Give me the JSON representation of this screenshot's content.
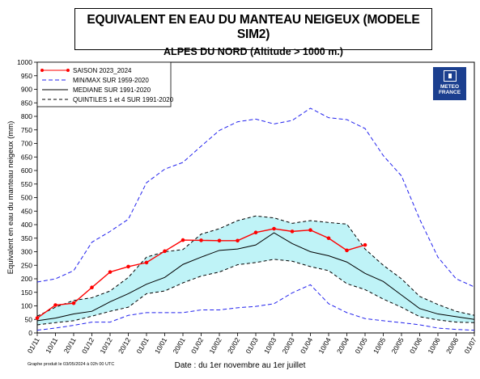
{
  "title": "EQUIVALENT EN EAU DU MANTEAU NEIGEUX (MODELE SIM2)",
  "subtitle": "ALPES DU NORD (Altitude > 1000 m.)",
  "logo_text": [
    "METEO",
    "FRANCE"
  ],
  "footnote": "Graphe produit le 03/05/2024 à 02h 00 UTC",
  "colors": {
    "season": "#ff0000",
    "minmax": "#2222ee",
    "median": "#000000",
    "quintiles": "#000000",
    "band": "#bff3f7",
    "logo": "#1b3f8f"
  },
  "chart_data": {
    "type": "line",
    "xlabel": "Date : du 1er novembre au 1er juillet",
    "ylabel": "Equivalent en eau du manteau neigeux (mm)",
    "ylim": [
      0,
      1000
    ],
    "yticks": [
      0,
      50,
      100,
      150,
      200,
      250,
      300,
      350,
      400,
      450,
      500,
      550,
      600,
      650,
      700,
      750,
      800,
      850,
      900,
      950,
      1000
    ],
    "x": [
      "01/11",
      "10/11",
      "20/11",
      "01/12",
      "10/12",
      "20/12",
      "01/01",
      "10/01",
      "20/01",
      "01/02",
      "10/02",
      "20/02",
      "01/03",
      "10/03",
      "20/03",
      "01/04",
      "10/04",
      "20/04",
      "01/05",
      "10/05",
      "20/05",
      "01/06",
      "10/06",
      "20/06",
      "01/07"
    ],
    "legend_placement": "top-left",
    "grid": false,
    "band": {
      "name": "QUINTILES 1 et 4 SUR 1991-2020",
      "between": [
        "QUINTILE 1",
        "QUINTILE 4"
      ]
    },
    "series": [
      {
        "name": "SAISON 2023_2024",
        "style": "solid-markers",
        "values": [
          55,
          103,
          110,
          168,
          225,
          245,
          260,
          302,
          343,
          342,
          341,
          341,
          371,
          385,
          375,
          380,
          350,
          305,
          325,
          null,
          null,
          null,
          null,
          null,
          null
        ]
      },
      {
        "name": "MIN/MAX SUR 1959-2020",
        "role": "max",
        "style": "dashed",
        "values": [
          188,
          200,
          230,
          335,
          375,
          420,
          555,
          605,
          630,
          690,
          748,
          780,
          790,
          772,
          785,
          830,
          795,
          788,
          755,
          655,
          580,
          420,
          280,
          200,
          170
        ]
      },
      {
        "name": "MIN/MAX SUR 1959-2020",
        "role": "min",
        "style": "dashed",
        "values": [
          10,
          18,
          28,
          40,
          40,
          65,
          75,
          75,
          75,
          85,
          85,
          93,
          98,
          108,
          148,
          178,
          108,
          75,
          53,
          45,
          38,
          30,
          18,
          13,
          10
        ]
      },
      {
        "name": "MEDIANE SUR 1991-2020",
        "style": "solid",
        "values": [
          45,
          55,
          70,
          80,
          115,
          145,
          180,
          205,
          253,
          280,
          305,
          310,
          325,
          370,
          330,
          300,
          285,
          262,
          220,
          190,
          140,
          90,
          70,
          60,
          50
        ]
      },
      {
        "name": "QUINTILE 4",
        "style": "dashed",
        "values": [
          62,
          95,
          120,
          130,
          155,
          205,
          280,
          300,
          308,
          365,
          385,
          415,
          432,
          425,
          405,
          415,
          408,
          402,
          310,
          250,
          200,
          135,
          105,
          80,
          65
        ]
      },
      {
        "name": "QUINTILE 1",
        "style": "dashed",
        "values": [
          30,
          38,
          45,
          62,
          80,
          95,
          145,
          155,
          185,
          210,
          225,
          252,
          260,
          272,
          265,
          245,
          230,
          182,
          160,
          125,
          95,
          60,
          48,
          40,
          38
        ]
      }
    ]
  }
}
